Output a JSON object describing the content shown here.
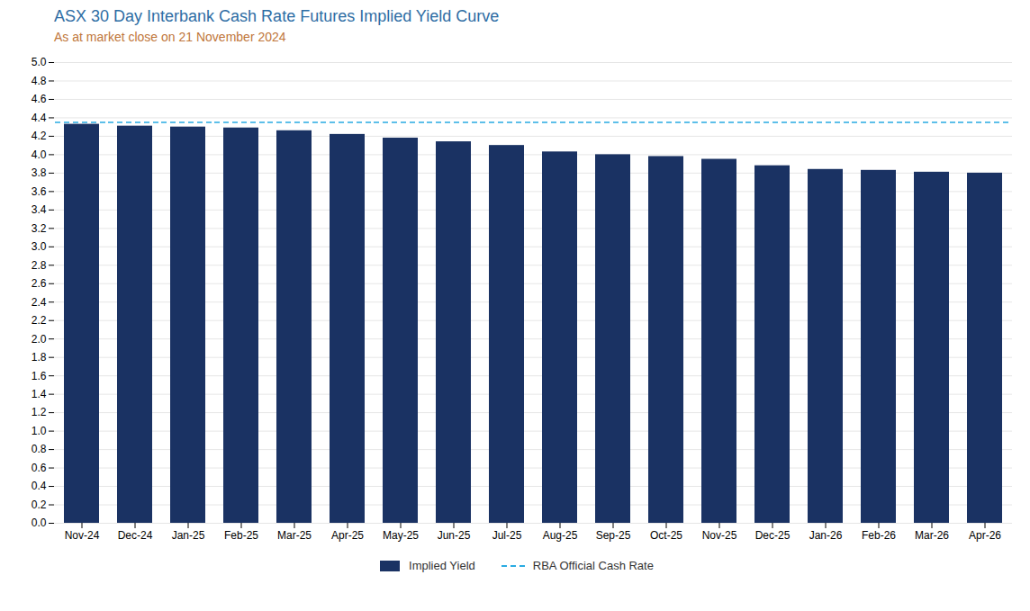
{
  "chart_data": {
    "type": "bar",
    "title": "ASX 30 Day Interbank Cash Rate Futures Implied Yield Curve",
    "subtitle": "As at market close on 21 November 2024",
    "categories": [
      "Nov-24",
      "Dec-24",
      "Jan-25",
      "Feb-25",
      "Mar-25",
      "Apr-25",
      "May-25",
      "Jun-25",
      "Jul-25",
      "Aug-25",
      "Sep-25",
      "Oct-25",
      "Nov-25",
      "Dec-25",
      "Jan-26",
      "Feb-26",
      "Mar-26",
      "Apr-26"
    ],
    "series": [
      {
        "name": "Implied Yield",
        "type": "bar",
        "color": "#1a3263",
        "values": [
          4.33,
          4.31,
          4.3,
          4.29,
          4.26,
          4.22,
          4.18,
          4.14,
          4.1,
          4.03,
          4.0,
          3.98,
          3.95,
          3.88,
          3.84,
          3.83,
          3.81,
          3.8
        ]
      },
      {
        "name": "RBA Official Cash Rate",
        "type": "line",
        "color": "#29abe2",
        "line_style": "dashed",
        "values": [
          4.35,
          4.35,
          4.35,
          4.35,
          4.35,
          4.35,
          4.35,
          4.35,
          4.35,
          4.35,
          4.35,
          4.35,
          4.35,
          4.35,
          4.35,
          4.35,
          4.35,
          4.35
        ]
      }
    ],
    "ylim": [
      0,
      5
    ],
    "yticks": [
      {
        "value": 0,
        "label": "0.0"
      },
      0.2,
      0.4,
      0.6,
      0.8,
      {
        "value": 1,
        "label": "1.0"
      },
      1.2,
      1.4,
      1.6,
      1.8,
      {
        "value": 2,
        "label": "2.0"
      },
      2.2,
      2.4,
      2.6,
      2.8,
      {
        "value": 3,
        "label": "3.0"
      },
      3.2,
      3.4,
      3.6,
      3.8,
      {
        "value": 4,
        "label": "4.0"
      },
      4.2,
      4.4,
      4.6,
      4.8,
      {
        "value": 5,
        "label": "5.0"
      }
    ],
    "grid": true,
    "legend": "bottom"
  }
}
